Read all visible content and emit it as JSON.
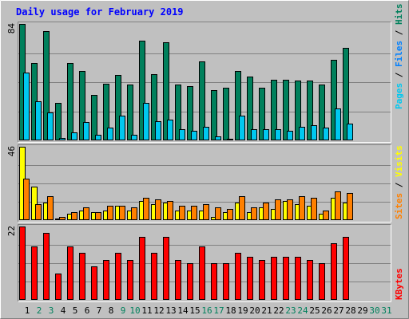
{
  "chart_data": {
    "type": "bar",
    "title": "Daily usage for February 2019",
    "categories": [
      "1",
      "2",
      "3",
      "4",
      "5",
      "6",
      "7",
      "8",
      "9",
      "10",
      "11",
      "12",
      "13",
      "14",
      "15",
      "16",
      "17",
      "18",
      "19",
      "20",
      "21",
      "22",
      "23",
      "24",
      "25",
      "26",
      "27",
      "28",
      "29",
      "30",
      "31"
    ],
    "weekend_days": [
      "2",
      "3",
      "9",
      "10",
      "16",
      "17",
      "23",
      "24",
      "30",
      "31"
    ],
    "panels": [
      {
        "id": "hits-files-pages",
        "scale_max_label": "84",
        "ylim": [
          0,
          84
        ],
        "grid": true,
        "legend": [
          "Pages",
          "Files",
          "Hits"
        ],
        "series": [
          {
            "name": "Hits",
            "color": "#00805c",
            "values": [
              84,
              56,
              79,
              27,
              56,
              50,
              33,
              41,
              47,
              40,
              72,
              48,
              71,
              40,
              39,
              57,
              36,
              38,
              50,
              46,
              38,
              44,
              44,
              43,
              43,
              40,
              58,
              67,
              0,
              0,
              0
            ]
          },
          {
            "name": "Files",
            "color": "#00c8f0",
            "values": [
              49,
              28,
              20,
              2,
              6,
              13,
              4,
              9,
              18,
              4,
              27,
              14,
              15,
              8,
              7,
              10,
              3,
              1,
              18,
              8,
              8,
              8,
              7,
              10,
              11,
              9,
              23,
              12,
              0,
              0,
              0
            ]
          }
        ]
      },
      {
        "id": "visits-sites",
        "scale_max_label": "46",
        "ylim": [
          0,
          46
        ],
        "grid": true,
        "legend": [
          "Sites",
          "Visits"
        ],
        "series": [
          {
            "name": "Visits",
            "color": "#ffff00",
            "values": [
              46,
              21,
              11,
              1,
              4,
              6,
              5,
              6,
              9,
              6,
              12,
              10,
              11,
              6,
              6,
              6,
              2,
              5,
              11,
              5,
              8,
              7,
              12,
              10,
              9,
              4,
              14,
              11,
              0,
              0,
              0
            ]
          },
          {
            "name": "Sites",
            "color": "#ff8000",
            "values": [
              26,
              10,
              15,
              2,
              5,
              8,
              5,
              9,
              9,
              8,
              14,
              13,
              12,
              9,
              9,
              10,
              8,
              7,
              15,
              8,
              11,
              13,
              13,
              15,
              14,
              6,
              18,
              17,
              0,
              0,
              0
            ]
          }
        ]
      },
      {
        "id": "kbytes",
        "scale_max_label": "22",
        "ylim": [
          0,
          22
        ],
        "grid": true,
        "legend": [
          "KBytes"
        ],
        "series": [
          {
            "name": "KBytes",
            "color": "#ff0000",
            "values": [
              22,
              16,
              20,
              8,
              16,
              14,
              10,
              12,
              14,
              12,
              19,
              14,
              19,
              12,
              11,
              16,
              11,
              11,
              14,
              13,
              12,
              13,
              13,
              13,
              12,
              11,
              17,
              19,
              0,
              0,
              0
            ]
          }
        ]
      }
    ]
  },
  "colors": {
    "background": "#c0c0c0",
    "title": "#0000ff",
    "weekday_label": "#000000",
    "weekend_label": "#00805c",
    "pages_label": "#00c8f0",
    "files_label": "#0080ff",
    "hits_label": "#00805c",
    "sites_label": "#ff8000",
    "visits_label": "#ffff00",
    "kbytes_label": "#ff0000",
    "separator": "#000000"
  }
}
